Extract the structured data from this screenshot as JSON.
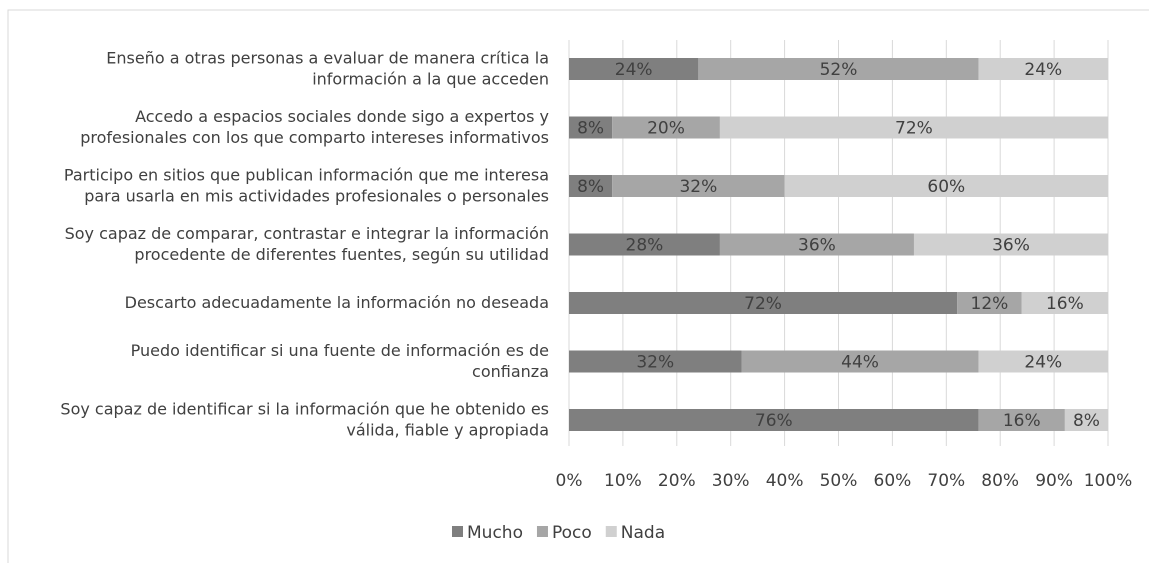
{
  "chart_data": {
    "type": "stacked_bar_horizontal",
    "categories": [
      "Enseño a otras personas a evaluar de manera crítica la\ninformación a la que acceden",
      "Accedo a espacios sociales donde sigo a expertos y\nprofesionales con los que comparto intereses informativos",
      "Participo en sitios que publican información que me interesa\npara usarla en mis actividades profesionales o personales",
      "Soy capaz de comparar, contrastar e integrar la información\nprocedente de diferentes fuentes, según su utilidad",
      "Descarto adecuadamente la información no deseada",
      "Puedo identificar si una fuente de información es de\nconfianza",
      "Soy capaz de identificar si la información que he obtenido es\nválida, fiable y apropiada"
    ],
    "series": [
      {
        "name": "Mucho",
        "color": "#7f7f7f",
        "values": [
          24,
          8,
          8,
          28,
          72,
          32,
          76
        ],
        "value_labels": [
          "24%",
          "8%",
          "8%",
          "28%",
          "72%",
          "32%",
          "76%"
        ]
      },
      {
        "name": "Poco",
        "color": "#a6a6a6",
        "values": [
          52,
          20,
          32,
          36,
          12,
          44,
          16
        ],
        "value_labels": [
          "52%",
          "20%",
          "32%",
          "36%",
          "12%",
          "44%",
          "16%"
        ]
      },
      {
        "name": "Nada",
        "color": "#d0d0d0",
        "values": [
          24,
          72,
          60,
          36,
          16,
          24,
          8
        ],
        "value_labels": [
          "24%",
          "72%",
          "60%",
          "36%",
          "16%",
          "24%",
          "8%"
        ]
      }
    ],
    "xlim": [
      0,
      100
    ],
    "xticks": [
      {
        "value": 0,
        "label": "0%"
      },
      {
        "value": 10,
        "label": "10%"
      },
      {
        "value": 20,
        "label": "20%"
      },
      {
        "value": 30,
        "label": "30%"
      },
      {
        "value": 40,
        "label": "40%"
      },
      {
        "value": 50,
        "label": "50%"
      },
      {
        "value": 60,
        "label": "60%"
      },
      {
        "value": 70,
        "label": "70%"
      },
      {
        "value": 80,
        "label": "80%"
      },
      {
        "value": 90,
        "label": "90%"
      },
      {
        "value": 100,
        "label": "100%"
      }
    ],
    "grid": true,
    "legend": "bottom"
  }
}
